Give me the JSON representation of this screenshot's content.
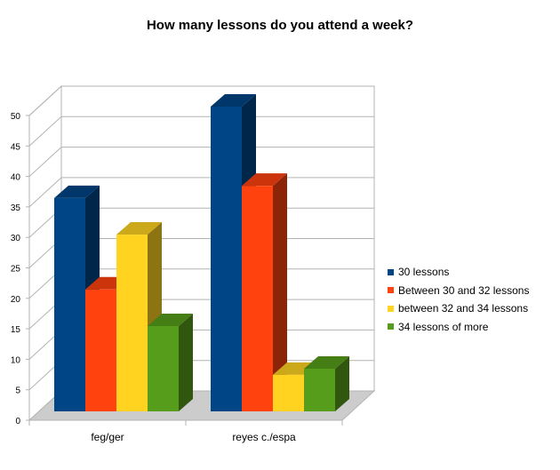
{
  "chart_data": {
    "type": "bar",
    "title": "How many lessons do you attend a week?",
    "xlabel": "",
    "ylabel": "",
    "categories": [
      "feg/ger",
      "reyes c./espa"
    ],
    "series": [
      {
        "name": "30 lessons",
        "values": [
          35,
          50
        ],
        "color": "#004586"
      },
      {
        "name": "Between 30 and 32 lessons",
        "values": [
          20,
          37
        ],
        "color": "#FF420E"
      },
      {
        "name": "between 32 and 34 lessons",
        "values": [
          29,
          6
        ],
        "color": "#FFD320"
      },
      {
        "name": "34 lessons of more",
        "values": [
          14,
          7
        ],
        "color": "#579D1C"
      }
    ],
    "ylim": [
      0,
      50
    ],
    "yticks": [
      0,
      5,
      10,
      15,
      20,
      25,
      30,
      35,
      40,
      45,
      50
    ],
    "grid": true,
    "legend_position": "right",
    "style": "3d"
  }
}
